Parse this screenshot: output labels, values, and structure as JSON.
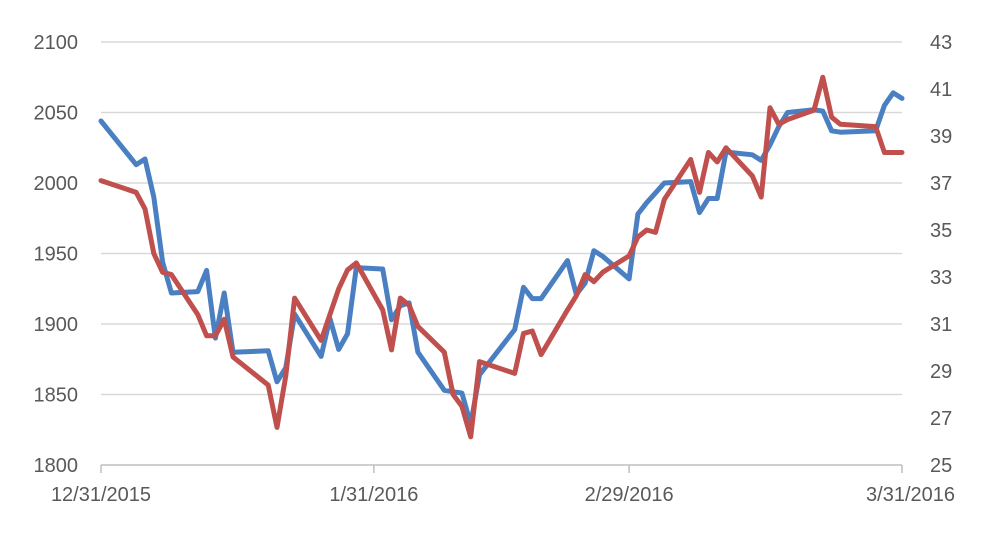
{
  "chart_data": {
    "type": "line",
    "title": "",
    "xlabel": "",
    "ylabel": "",
    "y2label": "",
    "x_range": [
      "2015-12-31",
      "2016-03-31"
    ],
    "ylim": [
      1800,
      2100
    ],
    "y2lim": [
      25,
      43
    ],
    "grid": true,
    "legend": "none",
    "x_ticks": [
      {
        "date": "2015-12-31",
        "label": "12/31/2015"
      },
      {
        "date": "2016-01-31",
        "label": "1/31/2016"
      },
      {
        "date": "2016-02-29",
        "label": "2/29/2016"
      },
      {
        "date": "2016-03-31",
        "label": "3/31/2016"
      }
    ],
    "y_ticks": [
      "1800",
      "1850",
      "1900",
      "1950",
      "2000",
      "2050",
      "2100"
    ],
    "y2_ticks": [
      "25",
      "27",
      "29",
      "31",
      "33",
      "35",
      "37",
      "39",
      "41",
      "43"
    ],
    "series": [
      {
        "color": "#4a7fc1",
        "axis": "left",
        "points": [
          [
            "2015-12-31",
            2044
          ],
          [
            "2016-01-04",
            2013
          ],
          [
            "2016-01-05",
            2017
          ],
          [
            "2016-01-06",
            1990
          ],
          [
            "2016-01-07",
            1944
          ],
          [
            "2016-01-08",
            1922
          ],
          [
            "2016-01-11",
            1923
          ],
          [
            "2016-01-12",
            1938
          ],
          [
            "2016-01-13",
            1890
          ],
          [
            "2016-01-14",
            1922
          ],
          [
            "2016-01-15",
            1880
          ],
          [
            "2016-01-19",
            1881
          ],
          [
            "2016-01-20",
            1859
          ],
          [
            "2016-01-21",
            1869
          ],
          [
            "2016-01-22",
            1907
          ],
          [
            "2016-01-25",
            1877
          ],
          [
            "2016-01-26",
            1904
          ],
          [
            "2016-01-27",
            1882
          ],
          [
            "2016-01-28",
            1893
          ],
          [
            "2016-01-29",
            1940
          ],
          [
            "2016-02-01",
            1939
          ],
          [
            "2016-02-02",
            1903
          ],
          [
            "2016-02-03",
            1913
          ],
          [
            "2016-02-04",
            1915
          ],
          [
            "2016-02-05",
            1880
          ],
          [
            "2016-02-08",
            1853
          ],
          [
            "2016-02-09",
            1852
          ],
          [
            "2016-02-10",
            1851
          ],
          [
            "2016-02-11",
            1829
          ],
          [
            "2016-02-12",
            1864
          ],
          [
            "2016-02-16",
            1896
          ],
          [
            "2016-02-17",
            1926
          ],
          [
            "2016-02-18",
            1918
          ],
          [
            "2016-02-19",
            1918
          ],
          [
            "2016-02-22",
            1945
          ],
          [
            "2016-02-23",
            1921
          ],
          [
            "2016-02-24",
            1929
          ],
          [
            "2016-02-25",
            1952
          ],
          [
            "2016-02-26",
            1948
          ],
          [
            "2016-02-29",
            1932
          ],
          [
            "2016-03-01",
            1978
          ],
          [
            "2016-03-02",
            1986
          ],
          [
            "2016-03-03",
            1993
          ],
          [
            "2016-03-04",
            2000
          ],
          [
            "2016-03-07",
            2001
          ],
          [
            "2016-03-08",
            1979
          ],
          [
            "2016-03-09",
            1989
          ],
          [
            "2016-03-10",
            1989
          ],
          [
            "2016-03-11",
            2022
          ],
          [
            "2016-03-14",
            2020
          ],
          [
            "2016-03-15",
            2016
          ],
          [
            "2016-03-16",
            2027
          ],
          [
            "2016-03-17",
            2040
          ],
          [
            "2016-03-18",
            2050
          ],
          [
            "2016-03-21",
            2052
          ],
          [
            "2016-03-22",
            2051
          ],
          [
            "2016-03-23",
            2037
          ],
          [
            "2016-03-24",
            2036
          ],
          [
            "2016-03-28",
            2037
          ],
          [
            "2016-03-29",
            2055
          ],
          [
            "2016-03-30",
            2064
          ],
          [
            "2016-03-31",
            2060
          ]
        ]
      },
      {
        "color": "#c0504d",
        "axis": "right",
        "points": [
          [
            "2015-12-31",
            37.1
          ],
          [
            "2016-01-04",
            36.6
          ],
          [
            "2016-01-05",
            35.9
          ],
          [
            "2016-01-06",
            34.0
          ],
          [
            "2016-01-07",
            33.2
          ],
          [
            "2016-01-08",
            33.1
          ],
          [
            "2016-01-11",
            31.4
          ],
          [
            "2016-01-12",
            30.5
          ],
          [
            "2016-01-13",
            30.5
          ],
          [
            "2016-01-14",
            31.2
          ],
          [
            "2016-01-15",
            29.6
          ],
          [
            "2016-01-19",
            28.4
          ],
          [
            "2016-01-20",
            26.6
          ],
          [
            "2016-01-21",
            28.8
          ],
          [
            "2016-01-22",
            32.1
          ],
          [
            "2016-01-25",
            30.3
          ],
          [
            "2016-01-26",
            31.4
          ],
          [
            "2016-01-27",
            32.5
          ],
          [
            "2016-01-28",
            33.3
          ],
          [
            "2016-01-29",
            33.6
          ],
          [
            "2016-02-01",
            31.6
          ],
          [
            "2016-02-02",
            29.9
          ],
          [
            "2016-02-03",
            32.1
          ],
          [
            "2016-02-04",
            31.8
          ],
          [
            "2016-02-05",
            30.9
          ],
          [
            "2016-02-08",
            29.8
          ],
          [
            "2016-02-09",
            28.0
          ],
          [
            "2016-02-10",
            27.5
          ],
          [
            "2016-02-11",
            26.2
          ],
          [
            "2016-02-12",
            29.4
          ],
          [
            "2016-02-16",
            28.9
          ],
          [
            "2016-02-17",
            30.6
          ],
          [
            "2016-02-18",
            30.7
          ],
          [
            "2016-02-19",
            29.7
          ],
          [
            "2016-02-22",
            31.6
          ],
          [
            "2016-02-23",
            32.2
          ],
          [
            "2016-02-24",
            33.1
          ],
          [
            "2016-02-25",
            32.8
          ],
          [
            "2016-02-26",
            33.2
          ],
          [
            "2016-02-29",
            33.9
          ],
          [
            "2016-03-01",
            34.7
          ],
          [
            "2016-03-02",
            35.0
          ],
          [
            "2016-03-03",
            34.9
          ],
          [
            "2016-03-04",
            36.3
          ],
          [
            "2016-03-07",
            38.0
          ],
          [
            "2016-03-08",
            36.6
          ],
          [
            "2016-03-09",
            38.3
          ],
          [
            "2016-03-10",
            37.9
          ],
          [
            "2016-03-11",
            38.5
          ],
          [
            "2016-03-14",
            37.3
          ],
          [
            "2016-03-15",
            36.4
          ],
          [
            "2016-03-16",
            40.2
          ],
          [
            "2016-03-17",
            39.5
          ],
          [
            "2016-03-18",
            39.7
          ],
          [
            "2016-03-21",
            40.1
          ],
          [
            "2016-03-22",
            41.5
          ],
          [
            "2016-03-23",
            39.8
          ],
          [
            "2016-03-24",
            39.5
          ],
          [
            "2016-03-28",
            39.4
          ],
          [
            "2016-03-29",
            38.3
          ],
          [
            "2016-03-30",
            38.3
          ],
          [
            "2016-03-31",
            38.3
          ]
        ]
      }
    ]
  }
}
